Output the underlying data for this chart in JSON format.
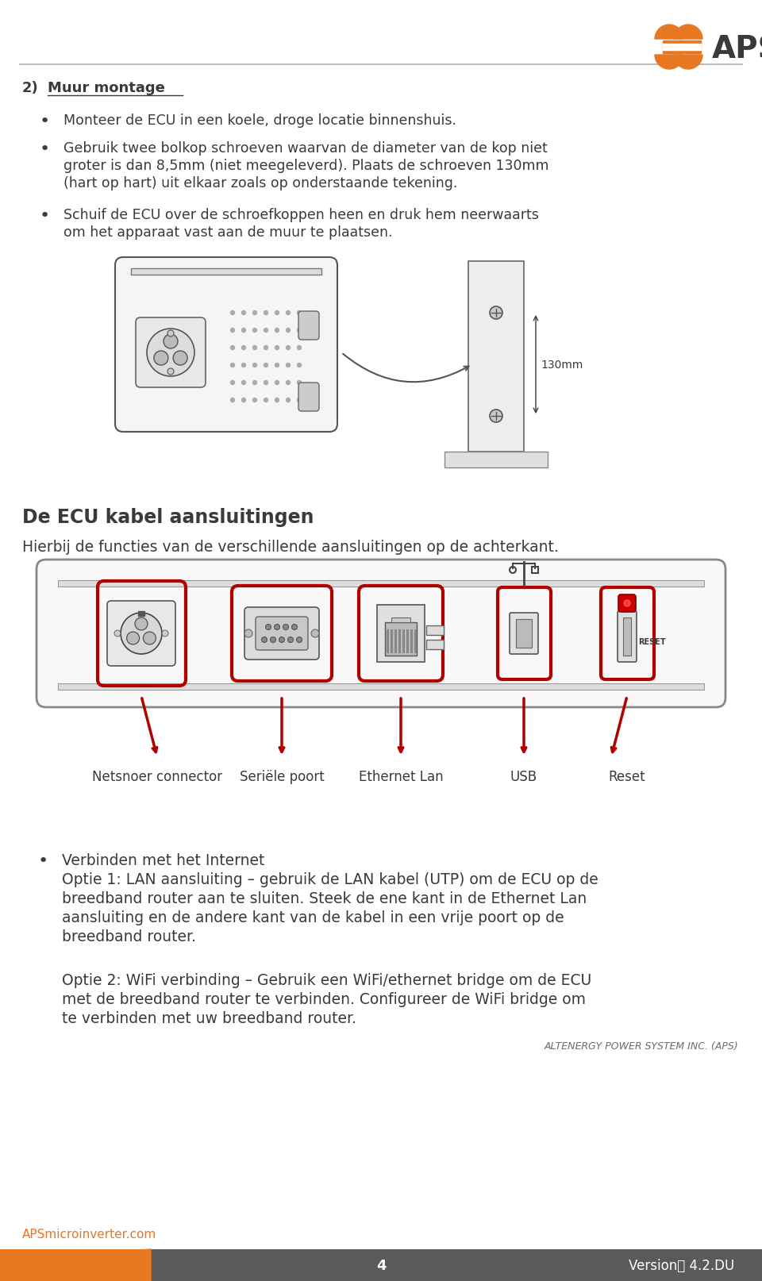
{
  "bg_color": "#ffffff",
  "orange_color": "#E87722",
  "dark_gray": "#3a3a3a",
  "medium_gray": "#6d6d6d",
  "light_gray": "#888888",
  "footer_bg": "#5a5a5a",
  "separator_color": "#b0b0b0",
  "title_section_num": "2)",
  "title_section_text": "Muur montage",
  "bullet1": "Monteer de ECU in een koele, droge locatie binnenshuis.",
  "bullet2_line1": "Gebruik twee bolkop schroeven waarvan de diameter van de kop niet",
  "bullet2_line2": "groter is dan 8,5mm (niet meegeleverd). Plaats de schroeven 130mm",
  "bullet2_line3": "(hart op hart) uit elkaar zoals op onderstaande tekening.",
  "bullet3_line1": "Schuif de ECU over de schroefkoppen heen en druk hem neerwaarts",
  "bullet3_line2": "om het apparaat vast aan de muur te plaatsen.",
  "section2_title": "De ECU kabel aansluitingen",
  "section2_sub": "Hierbij de functies van de verschillende aansluitingen op de achterkant.",
  "label1": "Netsnoer connector",
  "label2": "Seriële poort",
  "label3": "Ethernet Lan",
  "label4": "USB",
  "label5": "Reset",
  "body1_bold": "Verbinden met het Internet",
  "body1_line2": "Optie 1: LAN aansluiting – gebruik de LAN kabel (UTP) om de ECU op de",
  "body1_line3": "breedband router aan te sluiten. Steek de ene kant in de Ethernet Lan",
  "body1_line4": "aansluiting en de andere kant van de kabel in een vrije poort op de",
  "body1_line5": "breedband router.",
  "body2_line1": "Optie 2: WiFi verbinding – Gebruik een WiFi/ethernet bridge om de ECU",
  "body2_line2": "met de breedband router te verbinden. Configureer de WiFi bridge om",
  "body2_line3": "te verbinden met uw breedband router.",
  "copyright": "ALTENERGY POWER SYSTEM INC. (APS)",
  "footer_left": "APSmicroinverter.com",
  "footer_center": "4",
  "footer_right": "Version： 4.2.DU"
}
